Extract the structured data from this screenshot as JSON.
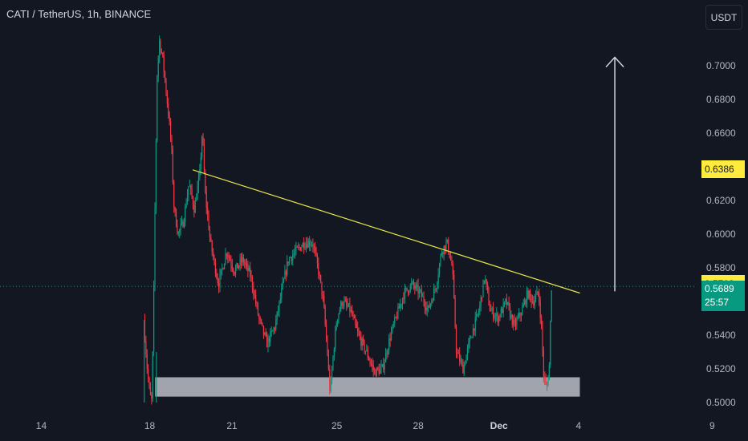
{
  "header": {
    "title": "CATI / TetherUS, 1h, BINANCE",
    "unit_button": "USDT"
  },
  "colors": {
    "background": "#131722",
    "up": "#089981",
    "down": "#f23645",
    "trendline": "#e6e648",
    "zone": "#d1d4dc",
    "arrow": "#d1d4dc",
    "highlight": "#ffeb3b",
    "current": "#089981"
  },
  "chart_data": {
    "type": "candlestick",
    "symbol": "CATI / TetherUS",
    "interval": "1h",
    "exchange": "BINANCE",
    "y_unit": "USDT",
    "ylim": [
      0.497,
      0.7184
    ],
    "y_ticks": [
      "0.7000",
      "0.6800",
      "0.6600",
      "0.6400",
      "0.6200",
      "0.6000",
      "0.5800",
      "0.5600",
      "0.5400",
      "0.5200",
      "0.5000"
    ],
    "x_ticks": [
      "14",
      "18",
      "21",
      "25",
      "28",
      "Dec",
      "4",
      "9"
    ],
    "x_tick_values": [
      13.97,
      18.0,
      21.06,
      24.96,
      27.99,
      30.99,
      33.95,
      38.92
    ],
    "xlim": [
      12.0,
      41.0
    ],
    "price_path": [
      [
        17.82,
        0.549
      ],
      [
        17.95,
        0.52
      ],
      [
        18.05,
        0.504
      ],
      [
        18.12,
        0.501
      ],
      [
        18.18,
        0.55
      ],
      [
        18.25,
        0.63
      ],
      [
        18.32,
        0.695
      ],
      [
        18.4,
        0.715
      ],
      [
        18.52,
        0.705
      ],
      [
        18.62,
        0.69
      ],
      [
        18.75,
        0.67
      ],
      [
        18.85,
        0.652
      ],
      [
        18.95,
        0.615
      ],
      [
        19.1,
        0.6
      ],
      [
        19.3,
        0.608
      ],
      [
        19.5,
        0.63
      ],
      [
        19.7,
        0.615
      ],
      [
        19.9,
        0.635
      ],
      [
        20.0,
        0.662
      ],
      [
        20.1,
        0.625
      ],
      [
        20.3,
        0.595
      ],
      [
        20.6,
        0.57
      ],
      [
        20.9,
        0.59
      ],
      [
        21.2,
        0.578
      ],
      [
        21.5,
        0.585
      ],
      [
        21.8,
        0.575
      ],
      [
        22.1,
        0.55
      ],
      [
        22.4,
        0.535
      ],
      [
        22.7,
        0.545
      ],
      [
        23.0,
        0.57
      ],
      [
        23.2,
        0.585
      ],
      [
        23.5,
        0.59
      ],
      [
        23.8,
        0.595
      ],
      [
        24.1,
        0.595
      ],
      [
        24.3,
        0.58
      ],
      [
        24.5,
        0.56
      ],
      [
        24.65,
        0.53
      ],
      [
        24.75,
        0.505
      ],
      [
        24.85,
        0.525
      ],
      [
        25.0,
        0.55
      ],
      [
        25.2,
        0.56
      ],
      [
        25.5,
        0.555
      ],
      [
        25.8,
        0.54
      ],
      [
        26.1,
        0.53
      ],
      [
        26.4,
        0.518
      ],
      [
        26.7,
        0.52
      ],
      [
        27.0,
        0.54
      ],
      [
        27.2,
        0.55
      ],
      [
        27.5,
        0.565
      ],
      [
        27.8,
        0.57
      ],
      [
        28.1,
        0.565
      ],
      [
        28.4,
        0.555
      ],
      [
        28.7,
        0.57
      ],
      [
        28.9,
        0.59
      ],
      [
        29.1,
        0.595
      ],
      [
        29.3,
        0.58
      ],
      [
        29.45,
        0.53
      ],
      [
        29.7,
        0.52
      ],
      [
        30.0,
        0.54
      ],
      [
        30.3,
        0.555
      ],
      [
        30.5,
        0.575
      ],
      [
        30.7,
        0.555
      ],
      [
        31.0,
        0.55
      ],
      [
        31.3,
        0.56
      ],
      [
        31.6,
        0.545
      ],
      [
        31.9,
        0.555
      ],
      [
        32.1,
        0.565
      ],
      [
        32.3,
        0.56
      ],
      [
        32.5,
        0.565
      ],
      [
        32.6,
        0.548
      ],
      [
        32.7,
        0.515
      ],
      [
        32.8,
        0.508
      ],
      [
        32.9,
        0.52
      ],
      [
        32.98,
        0.5689
      ]
    ],
    "volume_spikes": [
      [
        17.8,
        0.549
      ],
      [
        18.25,
        0.53
      ]
    ],
    "trendline": {
      "start": [
        19.6,
        0.6382
      ],
      "end": [
        34.0,
        0.565
      ],
      "color": "#e6e648"
    },
    "support_zone": {
      "x0": 18.2,
      "x1": 34.0,
      "y_low": 0.5035,
      "y_high": 0.515
    },
    "target_arrow": {
      "x": 35.3,
      "y_from": 0.566,
      "y_to": 0.705
    },
    "current_price": {
      "value": 0.5689,
      "label": "0.5689",
      "countdown": "25:57"
    },
    "highlighted_prices": [
      {
        "value": 0.6386,
        "label": "0.6386"
      },
      {
        "value": 0.5703,
        "label": "0.5703"
      }
    ]
  }
}
